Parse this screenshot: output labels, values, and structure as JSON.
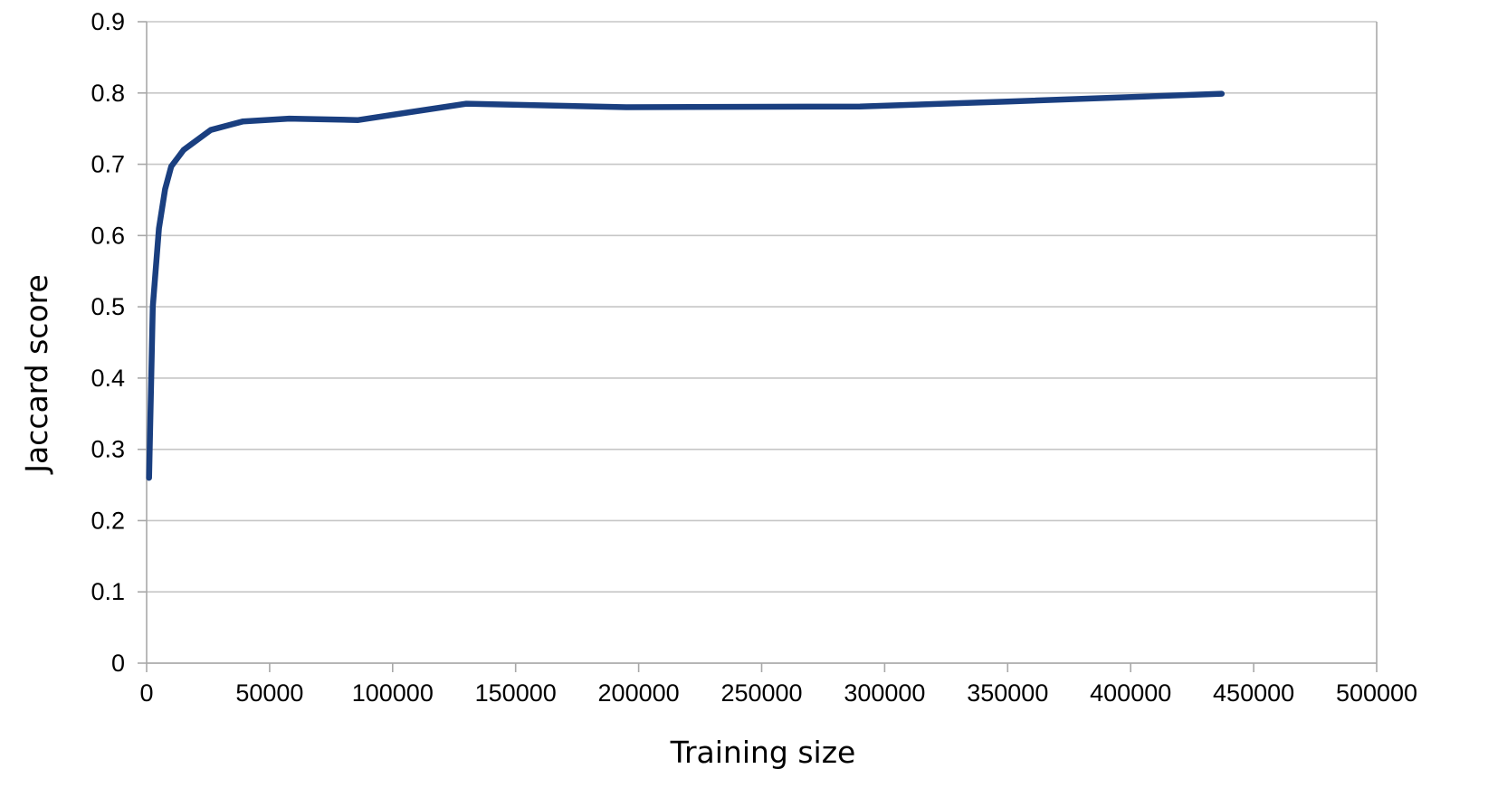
{
  "chart_data": {
    "type": "line",
    "title": "",
    "xlabel": "Training size",
    "ylabel": "Jaccard score",
    "xlim": [
      0,
      500000
    ],
    "ylim": [
      0,
      0.9
    ],
    "x_ticks": [
      0,
      50000,
      100000,
      150000,
      200000,
      250000,
      300000,
      350000,
      400000,
      450000,
      500000
    ],
    "x_tick_labels": [
      "0",
      "50000",
      "100000",
      "150000",
      "200000",
      "250000",
      "300000",
      "350000",
      "400000",
      "450000",
      "500000"
    ],
    "y_ticks": [
      0,
      0.1,
      0.2,
      0.3,
      0.4,
      0.5,
      0.6,
      0.7,
      0.8,
      0.9
    ],
    "y_tick_labels": [
      "0",
      "0.1",
      "0.2",
      "0.3",
      "0.4",
      "0.5",
      "0.6",
      "0.7",
      "0.8",
      "0.9"
    ],
    "grid": "horizontal",
    "legend": "none",
    "series": [
      {
        "color": "#1a3f80",
        "x": [
          1000,
          2500,
          5000,
          7500,
          10000,
          15000,
          26000,
          39000,
          58000,
          86000,
          107000,
          130000,
          195000,
          290000,
          350000,
          437000
        ],
        "y": [
          0.26,
          0.5,
          0.61,
          0.665,
          0.697,
          0.72,
          0.748,
          0.76,
          0.764,
          0.762,
          0.773,
          0.785,
          0.78,
          0.781,
          0.788,
          0.799
        ]
      }
    ]
  }
}
